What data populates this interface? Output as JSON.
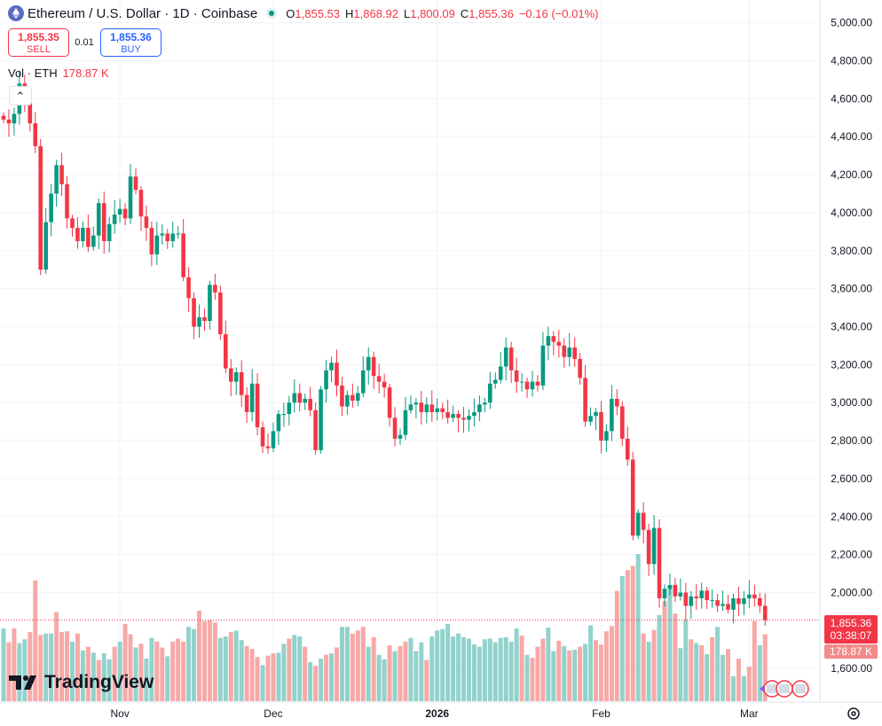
{
  "header": {
    "title": "Ethereum / U.S. Dollar · 1D · Coinbase",
    "symbol_icon": "ethereum-diamond-icon",
    "open_label": "O",
    "open": "1,855.53",
    "high_label": "H",
    "high": "1,868.92",
    "low_label": "L",
    "low": "1,800.09",
    "close_label": "C",
    "close": "1,855.36",
    "change": "−0.16 (−0.01%)"
  },
  "trade": {
    "sell_price": "1,855.35",
    "sell_label": "SELL",
    "spread": "0.01",
    "buy_price": "1,855.36",
    "buy_label": "BUY"
  },
  "volume_legend": {
    "label": "Vol · ETH",
    "value": "178.87 K"
  },
  "price_tag": {
    "price": "1,855.36",
    "countdown": "03:38:07"
  },
  "volume_tag": "178.87 K",
  "logo_text": "TradingView",
  "colors": {
    "up": "#089981",
    "down": "#f23645",
    "vol_up": "#92d2cc",
    "vol_down": "#f7a9a7",
    "grid": "#f0f3fa"
  },
  "chart_data": {
    "type": "candlestick",
    "title": "Ethereum / U.S. Dollar · 1D · Coinbase",
    "ylim": [
      1500,
      5060
    ],
    "y_ticks": [
      "5,000.00",
      "4,800.00",
      "4,600.00",
      "4,400.00",
      "4,200.00",
      "4,000.00",
      "3,800.00",
      "3,600.00",
      "3,400.00",
      "3,200.00",
      "3,000.00",
      "2,800.00",
      "2,600.00",
      "2,400.00",
      "2,200.00",
      "2,000.00",
      "1,600.00"
    ],
    "y_tick_values": [
      5000,
      4800,
      4600,
      4400,
      4200,
      4000,
      3800,
      3600,
      3400,
      3200,
      3000,
      2800,
      2600,
      2400,
      2200,
      2000,
      1600
    ],
    "x_ticks": [
      "Nov",
      "Dec",
      "2026",
      "Feb",
      "Mar"
    ],
    "x_tick_index": [
      22,
      51,
      82,
      113,
      141
    ],
    "closes": [
      4490,
      4470,
      4520,
      4680,
      4580,
      4470,
      4350,
      3700,
      3950,
      4100,
      4250,
      4150,
      3970,
      3920,
      3850,
      3920,
      3820,
      3880,
      4050,
      3850,
      3940,
      3990,
      4020,
      3970,
      4190,
      4120,
      3980,
      3920,
      3780,
      3880,
      3890,
      3850,
      3890,
      3890,
      3660,
      3550,
      3400,
      3450,
      3430,
      3620,
      3580,
      3360,
      3180,
      3110,
      3160,
      3040,
      2950,
      3100,
      2870,
      2770,
      2760,
      2850,
      2940,
      2940,
      3000,
      3050,
      3000,
      3020,
      2960,
      2750,
      3070,
      3170,
      3210,
      3090,
      2980,
      3040,
      3010,
      3050,
      3170,
      3240,
      3140,
      3110,
      3080,
      2920,
      2810,
      2830,
      2960,
      2990,
      3000,
      2950,
      2990,
      2950,
      2970,
      2950,
      2920,
      2940,
      2920,
      2910,
      2930,
      2950,
      2990,
      3000,
      3100,
      3120,
      3190,
      3290,
      3170,
      3110,
      3110,
      3070,
      3110,
      3090,
      3300,
      3350,
      3320,
      3300,
      3240,
      3290,
      3230,
      3130,
      2900,
      2930,
      2950,
      2800,
      2850,
      3020,
      2980,
      2810,
      2700,
      2300,
      2420,
      2330,
      2150,
      2340,
      1970,
      2020,
      2040,
      1980,
      2000,
      1930,
      1980,
      1970,
      2010,
      1960,
      1960,
      1930,
      1940,
      1910,
      1970,
      1940,
      1970,
      1990,
      1970,
      1930,
      1855.36
    ],
    "volumes": [
      {
        "v": 99,
        "up": true
      },
      {
        "v": 80,
        "up": false
      },
      {
        "v": 99,
        "up": false
      },
      {
        "v": 79,
        "up": true
      },
      {
        "v": 84,
        "up": true
      },
      {
        "v": 94,
        "up": false
      },
      {
        "v": 164,
        "up": false
      },
      {
        "v": 90,
        "up": false
      },
      {
        "v": 92,
        "up": true
      },
      {
        "v": 92,
        "up": true
      },
      {
        "v": 121,
        "up": false
      },
      {
        "v": 94,
        "up": false
      },
      {
        "v": 95,
        "up": false
      },
      {
        "v": 81,
        "up": true
      },
      {
        "v": 92,
        "up": false
      },
      {
        "v": 69,
        "up": true
      },
      {
        "v": 74,
        "up": false
      },
      {
        "v": 66,
        "up": true
      },
      {
        "v": 56,
        "up": false
      },
      {
        "v": 65,
        "up": true
      },
      {
        "v": 57,
        "up": true
      },
      {
        "v": 74,
        "up": false
      },
      {
        "v": 81,
        "up": true
      },
      {
        "v": 105,
        "up": false
      },
      {
        "v": 91,
        "up": false
      },
      {
        "v": 73,
        "up": true
      },
      {
        "v": 78,
        "up": false
      },
      {
        "v": 58,
        "up": true
      },
      {
        "v": 86,
        "up": true
      },
      {
        "v": 81,
        "up": false
      },
      {
        "v": 73,
        "up": false
      },
      {
        "v": 61,
        "up": true
      },
      {
        "v": 81,
        "up": false
      },
      {
        "v": 85,
        "up": false
      },
      {
        "v": 81,
        "up": false
      },
      {
        "v": 101,
        "up": true
      },
      {
        "v": 98,
        "up": true
      },
      {
        "v": 123,
        "up": false
      },
      {
        "v": 109,
        "up": false
      },
      {
        "v": 110,
        "up": false
      },
      {
        "v": 107,
        "up": false
      },
      {
        "v": 86,
        "up": true
      },
      {
        "v": 88,
        "up": true
      },
      {
        "v": 94,
        "up": false
      },
      {
        "v": 96,
        "up": true
      },
      {
        "v": 83,
        "up": true
      },
      {
        "v": 75,
        "up": false
      },
      {
        "v": 71,
        "up": false
      },
      {
        "v": 60,
        "up": false
      },
      {
        "v": 49,
        "up": true
      },
      {
        "v": 62,
        "up": false
      },
      {
        "v": 65,
        "up": false
      },
      {
        "v": 66,
        "up": true
      },
      {
        "v": 78,
        "up": true
      },
      {
        "v": 85,
        "up": false
      },
      {
        "v": 90,
        "up": true
      },
      {
        "v": 88,
        "up": true
      },
      {
        "v": 74,
        "up": false
      },
      {
        "v": 53,
        "up": true
      },
      {
        "v": 48,
        "up": false
      },
      {
        "v": 58,
        "up": true
      },
      {
        "v": 63,
        "up": false
      },
      {
        "v": 65,
        "up": true
      },
      {
        "v": 73,
        "up": false
      },
      {
        "v": 101,
        "up": true
      },
      {
        "v": 101,
        "up": true
      },
      {
        "v": 92,
        "up": false
      },
      {
        "v": 96,
        "up": false
      },
      {
        "v": 101,
        "up": false
      },
      {
        "v": 74,
        "up": true
      },
      {
        "v": 87,
        "up": false
      },
      {
        "v": 63,
        "up": true
      },
      {
        "v": 57,
        "up": true
      },
      {
        "v": 76,
        "up": false
      },
      {
        "v": 68,
        "up": true
      },
      {
        "v": 75,
        "up": false
      },
      {
        "v": 81,
        "up": false
      },
      {
        "v": 86,
        "up": true
      },
      {
        "v": 68,
        "up": true
      },
      {
        "v": 80,
        "up": true
      },
      {
        "v": 56,
        "up": false
      },
      {
        "v": 88,
        "up": true
      },
      {
        "v": 96,
        "up": true
      },
      {
        "v": 98,
        "up": true
      },
      {
        "v": 105,
        "up": true
      },
      {
        "v": 88,
        "up": true
      },
      {
        "v": 92,
        "up": true
      },
      {
        "v": 87,
        "up": true
      },
      {
        "v": 85,
        "up": true
      },
      {
        "v": 77,
        "up": true
      },
      {
        "v": 74,
        "up": true
      },
      {
        "v": 84,
        "up": true
      },
      {
        "v": 85,
        "up": true
      },
      {
        "v": 80,
        "up": true
      },
      {
        "v": 86,
        "up": true
      },
      {
        "v": 87,
        "up": true
      },
      {
        "v": 81,
        "up": true
      },
      {
        "v": 99,
        "up": true
      },
      {
        "v": 89,
        "up": false
      },
      {
        "v": 63,
        "up": true
      },
      {
        "v": 59,
        "up": false
      },
      {
        "v": 74,
        "up": false
      },
      {
        "v": 85,
        "up": false
      },
      {
        "v": 100,
        "up": true
      },
      {
        "v": 68,
        "up": true
      },
      {
        "v": 82,
        "up": false
      },
      {
        "v": 75,
        "up": true
      },
      {
        "v": 69,
        "up": false
      },
      {
        "v": 70,
        "up": true
      },
      {
        "v": 74,
        "up": false
      },
      {
        "v": 78,
        "up": true
      },
      {
        "v": 103,
        "up": true
      },
      {
        "v": 83,
        "up": false
      },
      {
        "v": 77,
        "up": false
      },
      {
        "v": 95,
        "up": false
      },
      {
        "v": 102,
        "up": false
      },
      {
        "v": 150,
        "up": false
      },
      {
        "v": 170,
        "up": true
      },
      {
        "v": 178,
        "up": false
      },
      {
        "v": 184,
        "up": false
      },
      {
        "v": 200,
        "up": true
      },
      {
        "v": 92,
        "up": false
      },
      {
        "v": 81,
        "up": true
      },
      {
        "v": 97,
        "up": false
      },
      {
        "v": 117,
        "up": true
      },
      {
        "v": 136,
        "up": false
      },
      {
        "v": 157,
        "up": true
      },
      {
        "v": 119,
        "up": false
      },
      {
        "v": 72,
        "up": true
      },
      {
        "v": 111,
        "up": true
      },
      {
        "v": 84,
        "up": false
      },
      {
        "v": 79,
        "up": true
      },
      {
        "v": 76,
        "up": false
      },
      {
        "v": 64,
        "up": true
      },
      {
        "v": 87,
        "up": false
      },
      {
        "v": 101,
        "up": true
      },
      {
        "v": 63,
        "up": true
      },
      {
        "v": 71,
        "up": false
      },
      {
        "v": 34,
        "up": true
      },
      {
        "v": 58,
        "up": false
      },
      {
        "v": 34,
        "up": true
      },
      {
        "v": 47,
        "up": false
      },
      {
        "v": 109,
        "up": false
      },
      {
        "v": 76,
        "up": true
      },
      {
        "v": 91,
        "up": false
      }
    ]
  }
}
